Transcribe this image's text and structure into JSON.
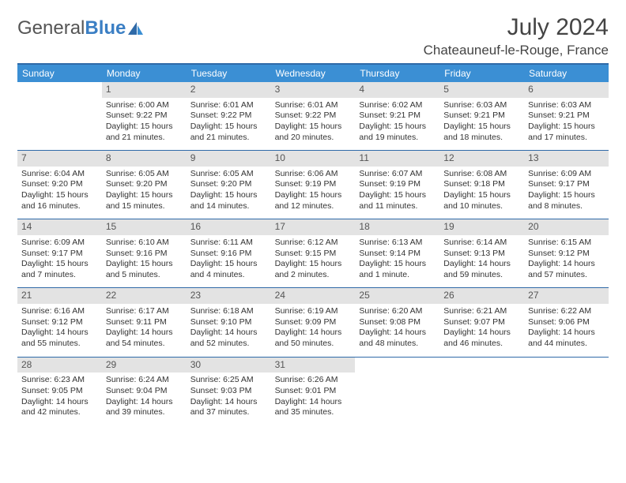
{
  "logo": {
    "textDark": "General",
    "textBlue": "Blue"
  },
  "title": "July 2024",
  "location": "Chateauneuf-le-Rouge, France",
  "colors": {
    "headerBar": "#3b8fd4",
    "rule": "#2f6aa8",
    "dayNumBg": "#e3e3e3",
    "logoBlue": "#3b7fc4"
  },
  "dayNames": [
    "Sunday",
    "Monday",
    "Tuesday",
    "Wednesday",
    "Thursday",
    "Friday",
    "Saturday"
  ],
  "weeks": [
    [
      null,
      {
        "n": "1",
        "sr": "Sunrise: 6:00 AM",
        "ss": "Sunset: 9:22 PM",
        "dl": "Daylight: 15 hours and 21 minutes."
      },
      {
        "n": "2",
        "sr": "Sunrise: 6:01 AM",
        "ss": "Sunset: 9:22 PM",
        "dl": "Daylight: 15 hours and 21 minutes."
      },
      {
        "n": "3",
        "sr": "Sunrise: 6:01 AM",
        "ss": "Sunset: 9:22 PM",
        "dl": "Daylight: 15 hours and 20 minutes."
      },
      {
        "n": "4",
        "sr": "Sunrise: 6:02 AM",
        "ss": "Sunset: 9:21 PM",
        "dl": "Daylight: 15 hours and 19 minutes."
      },
      {
        "n": "5",
        "sr": "Sunrise: 6:03 AM",
        "ss": "Sunset: 9:21 PM",
        "dl": "Daylight: 15 hours and 18 minutes."
      },
      {
        "n": "6",
        "sr": "Sunrise: 6:03 AM",
        "ss": "Sunset: 9:21 PM",
        "dl": "Daylight: 15 hours and 17 minutes."
      }
    ],
    [
      {
        "n": "7",
        "sr": "Sunrise: 6:04 AM",
        "ss": "Sunset: 9:20 PM",
        "dl": "Daylight: 15 hours and 16 minutes."
      },
      {
        "n": "8",
        "sr": "Sunrise: 6:05 AM",
        "ss": "Sunset: 9:20 PM",
        "dl": "Daylight: 15 hours and 15 minutes."
      },
      {
        "n": "9",
        "sr": "Sunrise: 6:05 AM",
        "ss": "Sunset: 9:20 PM",
        "dl": "Daylight: 15 hours and 14 minutes."
      },
      {
        "n": "10",
        "sr": "Sunrise: 6:06 AM",
        "ss": "Sunset: 9:19 PM",
        "dl": "Daylight: 15 hours and 12 minutes."
      },
      {
        "n": "11",
        "sr": "Sunrise: 6:07 AM",
        "ss": "Sunset: 9:19 PM",
        "dl": "Daylight: 15 hours and 11 minutes."
      },
      {
        "n": "12",
        "sr": "Sunrise: 6:08 AM",
        "ss": "Sunset: 9:18 PM",
        "dl": "Daylight: 15 hours and 10 minutes."
      },
      {
        "n": "13",
        "sr": "Sunrise: 6:09 AM",
        "ss": "Sunset: 9:17 PM",
        "dl": "Daylight: 15 hours and 8 minutes."
      }
    ],
    [
      {
        "n": "14",
        "sr": "Sunrise: 6:09 AM",
        "ss": "Sunset: 9:17 PM",
        "dl": "Daylight: 15 hours and 7 minutes."
      },
      {
        "n": "15",
        "sr": "Sunrise: 6:10 AM",
        "ss": "Sunset: 9:16 PM",
        "dl": "Daylight: 15 hours and 5 minutes."
      },
      {
        "n": "16",
        "sr": "Sunrise: 6:11 AM",
        "ss": "Sunset: 9:16 PM",
        "dl": "Daylight: 15 hours and 4 minutes."
      },
      {
        "n": "17",
        "sr": "Sunrise: 6:12 AM",
        "ss": "Sunset: 9:15 PM",
        "dl": "Daylight: 15 hours and 2 minutes."
      },
      {
        "n": "18",
        "sr": "Sunrise: 6:13 AM",
        "ss": "Sunset: 9:14 PM",
        "dl": "Daylight: 15 hours and 1 minute."
      },
      {
        "n": "19",
        "sr": "Sunrise: 6:14 AM",
        "ss": "Sunset: 9:13 PM",
        "dl": "Daylight: 14 hours and 59 minutes."
      },
      {
        "n": "20",
        "sr": "Sunrise: 6:15 AM",
        "ss": "Sunset: 9:12 PM",
        "dl": "Daylight: 14 hours and 57 minutes."
      }
    ],
    [
      {
        "n": "21",
        "sr": "Sunrise: 6:16 AM",
        "ss": "Sunset: 9:12 PM",
        "dl": "Daylight: 14 hours and 55 minutes."
      },
      {
        "n": "22",
        "sr": "Sunrise: 6:17 AM",
        "ss": "Sunset: 9:11 PM",
        "dl": "Daylight: 14 hours and 54 minutes."
      },
      {
        "n": "23",
        "sr": "Sunrise: 6:18 AM",
        "ss": "Sunset: 9:10 PM",
        "dl": "Daylight: 14 hours and 52 minutes."
      },
      {
        "n": "24",
        "sr": "Sunrise: 6:19 AM",
        "ss": "Sunset: 9:09 PM",
        "dl": "Daylight: 14 hours and 50 minutes."
      },
      {
        "n": "25",
        "sr": "Sunrise: 6:20 AM",
        "ss": "Sunset: 9:08 PM",
        "dl": "Daylight: 14 hours and 48 minutes."
      },
      {
        "n": "26",
        "sr": "Sunrise: 6:21 AM",
        "ss": "Sunset: 9:07 PM",
        "dl": "Daylight: 14 hours and 46 minutes."
      },
      {
        "n": "27",
        "sr": "Sunrise: 6:22 AM",
        "ss": "Sunset: 9:06 PM",
        "dl": "Daylight: 14 hours and 44 minutes."
      }
    ],
    [
      {
        "n": "28",
        "sr": "Sunrise: 6:23 AM",
        "ss": "Sunset: 9:05 PM",
        "dl": "Daylight: 14 hours and 42 minutes."
      },
      {
        "n": "29",
        "sr": "Sunrise: 6:24 AM",
        "ss": "Sunset: 9:04 PM",
        "dl": "Daylight: 14 hours and 39 minutes."
      },
      {
        "n": "30",
        "sr": "Sunrise: 6:25 AM",
        "ss": "Sunset: 9:03 PM",
        "dl": "Daylight: 14 hours and 37 minutes."
      },
      {
        "n": "31",
        "sr": "Sunrise: 6:26 AM",
        "ss": "Sunset: 9:01 PM",
        "dl": "Daylight: 14 hours and 35 minutes."
      },
      null,
      null,
      null
    ]
  ]
}
